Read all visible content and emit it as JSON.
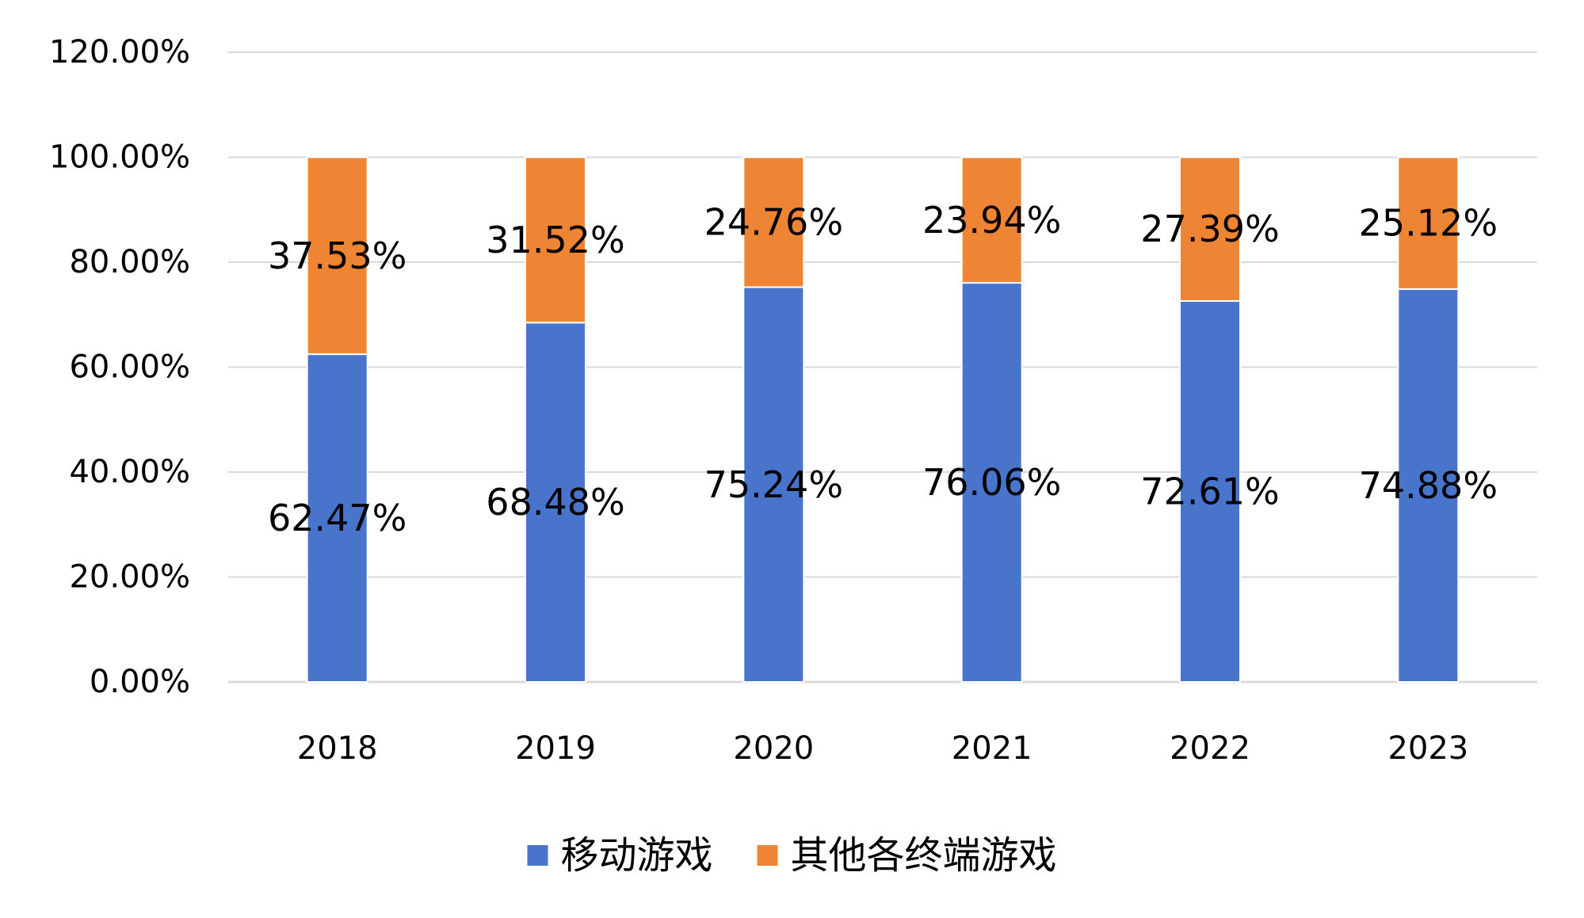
{
  "chart_data": {
    "type": "bar",
    "stacked": true,
    "title": "",
    "xlabel": "",
    "ylabel": "",
    "categories": [
      "2018",
      "2019",
      "2020",
      "2021",
      "2022",
      "2023"
    ],
    "ylim": [
      0,
      120
    ],
    "yticks": [
      0,
      20,
      40,
      60,
      80,
      100,
      120
    ],
    "ytick_labels": [
      "0.00%",
      "20.00%",
      "40.00%",
      "60.00%",
      "80.00%",
      "100.00%",
      "120.00%"
    ],
    "grid": true,
    "legend_position": "bottom",
    "series": [
      {
        "name": "移动游戏",
        "color": "#4874CB",
        "values": [
          62.47,
          68.48,
          75.24,
          76.06,
          72.61,
          74.88
        ],
        "labels": [
          "62.47%",
          "68.48%",
          "75.24%",
          "76.06%",
          "72.61%",
          "74.88%"
        ]
      },
      {
        "name": "其他各终端游戏",
        "color": "#EE8535",
        "values": [
          37.53,
          31.52,
          24.76,
          23.94,
          27.39,
          25.12
        ],
        "labels": [
          "37.53%",
          "31.52%",
          "24.76%",
          "23.94%",
          "27.39%",
          "25.12%"
        ]
      }
    ],
    "gridline_color": "#D9D9D9"
  }
}
